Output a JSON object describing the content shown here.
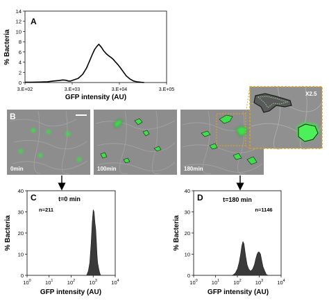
{
  "panel_letters": {
    "a": "A",
    "b": "B",
    "c": "C",
    "d": "D"
  },
  "panel_b": {
    "frames": [
      {
        "label": "0min"
      },
      {
        "label": "100min"
      },
      {
        "label": "180min"
      }
    ],
    "zoom_label": "X2.5",
    "colors": {
      "gfp": "#3ee04a",
      "zoom_frame": "#e0a020",
      "arrow": "#000000"
    }
  },
  "chart_data": [
    {
      "panel": "A",
      "type": "line",
      "xlabel": "GFP intensity (AU)",
      "ylabel": "% Bacteria",
      "xscale": "log",
      "xlim": [
        300,
        300000
      ],
      "ylim": [
        0,
        14
      ],
      "xticks": [
        300,
        3000,
        30000,
        300000
      ],
      "xtick_labels": [
        "3.E+02",
        "3.E+03",
        "3.E+04",
        "3.E+05"
      ],
      "yticks": [
        0,
        2,
        4,
        6,
        8,
        10,
        12,
        14
      ],
      "ytick_labels": [
        "0",
        "2",
        "4",
        "6",
        "8",
        "10",
        "12",
        "14"
      ],
      "x": [
        300,
        400,
        600,
        900,
        1200,
        1600,
        1900,
        2200,
        2500,
        2800,
        3300,
        4000,
        5000,
        6000,
        7000,
        8000,
        9000,
        10000,
        11000,
        12500,
        14000,
        16000,
        18000,
        20000,
        22000,
        25000,
        28000,
        32000,
        37000,
        42000,
        50000,
        60000,
        70000,
        85000,
        100000
      ],
      "y": [
        0.05,
        0.05,
        0.1,
        0.15,
        0.3,
        0.4,
        0.5,
        0.45,
        0.3,
        0.3,
        0.55,
        0.8,
        1.6,
        2.8,
        4.2,
        5.5,
        6.5,
        7.1,
        7.5,
        6.9,
        6.2,
        5.6,
        5.2,
        4.9,
        4.6,
        4.0,
        3.5,
        2.8,
        2.0,
        1.3,
        0.7,
        0.3,
        0.15,
        0.05,
        0
      ]
    },
    {
      "panel": "C",
      "type": "area",
      "title": "t=0 min",
      "annotation": "n=211",
      "xlabel": "GFP intensity (AU)",
      "ylabel": "% Bacteria",
      "xscale": "log",
      "xlim": [
        1,
        10000
      ],
      "ylim": [
        0,
        40
      ],
      "yticks": [
        0,
        10,
        20,
        30,
        40
      ],
      "ytick_labels": [
        "0",
        "10",
        "20",
        "30",
        "40"
      ],
      "xticks": [
        1,
        10,
        100,
        1000,
        10000
      ],
      "xtick_bases": [
        "10",
        "10",
        "10",
        "10",
        "10"
      ],
      "xtick_exps": [
        "0",
        "1",
        "2",
        "3",
        "4"
      ],
      "color": "#3a3a3a",
      "x": [
        500,
        600,
        700,
        800,
        900,
        1000,
        1100,
        1200,
        1300,
        1400,
        1500,
        1600,
        1800,
        2000,
        2200
      ],
      "y": [
        0,
        2,
        6,
        15,
        25,
        31,
        30,
        25,
        22,
        16,
        10,
        6,
        3,
        1,
        0
      ]
    },
    {
      "panel": "D",
      "type": "area",
      "title": "t=180 min",
      "annotation": "n=1146",
      "xlabel": "GFP intensity (AU)",
      "ylabel": "% Bacteria",
      "xscale": "log",
      "xlim": [
        1,
        10000
      ],
      "ylim": [
        0,
        40
      ],
      "yticks": [
        0,
        10,
        20,
        30,
        40
      ],
      "ytick_labels": [
        "0",
        "10",
        "20",
        "30",
        "40"
      ],
      "xticks": [
        1,
        10,
        100,
        1000,
        10000
      ],
      "xtick_bases": [
        "10",
        "10",
        "10",
        "10",
        "10"
      ],
      "xtick_exps": [
        "0",
        "1",
        "2",
        "3",
        "4"
      ],
      "color": "#3a3a3a",
      "x": [
        60,
        80,
        100,
        120,
        140,
        160,
        180,
        200,
        240,
        280,
        330,
        400,
        500,
        600,
        700,
        800,
        900,
        1000,
        1150,
        1300,
        1500,
        1800,
        2100,
        2500
      ],
      "y": [
        0,
        1,
        3,
        6,
        10,
        14,
        16,
        15,
        9,
        5,
        3,
        2,
        3,
        5,
        8,
        10,
        11,
        11,
        10,
        7,
        4,
        2,
        0.5,
        0
      ]
    }
  ]
}
